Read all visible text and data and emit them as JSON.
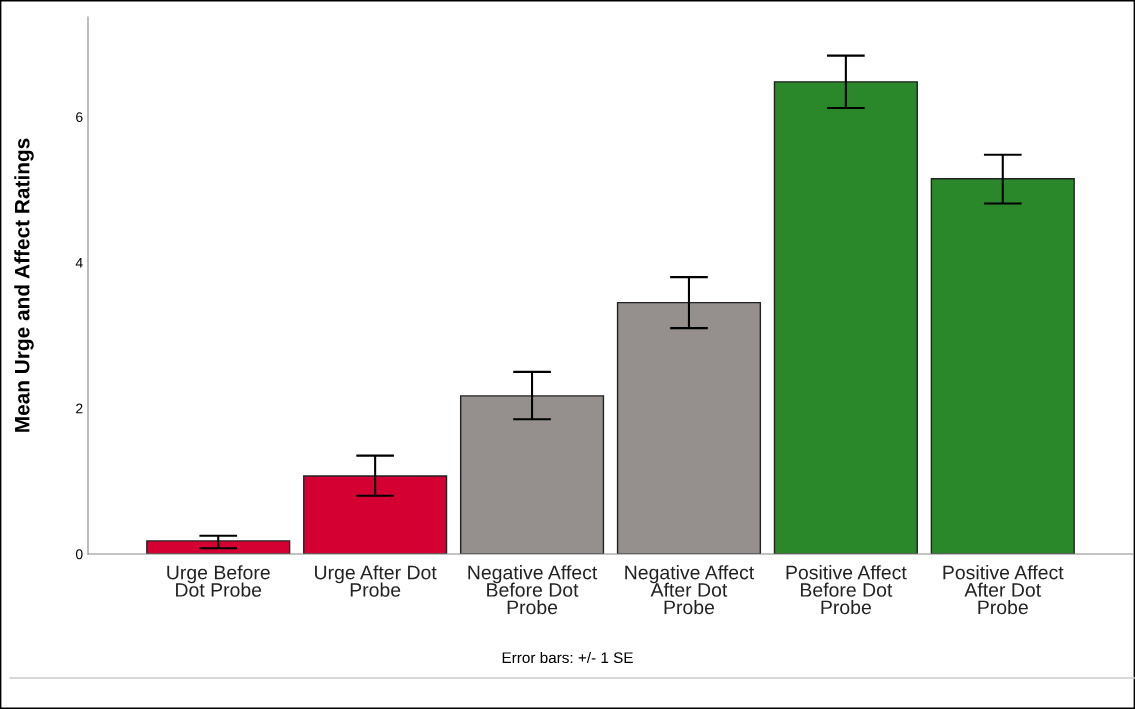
{
  "chart_data": {
    "type": "bar",
    "ylabel": "Mean Urge and Affect Ratings",
    "categories": [
      "Urge Before\nDot Probe",
      "Urge After Dot\nProbe",
      "Negative Affect\nBefore Dot\nProbe",
      "Negative Affect\nAfter Dot\nProbe",
      "Positive Affect\nBefore Dot\nProbe",
      "Positive Affect\nAfter Dot\nProbe"
    ],
    "values": [
      0.18,
      1.07,
      2.17,
      3.45,
      6.48,
      5.15
    ],
    "colors": [
      "#d50032",
      "#d50032",
      "#958f8e",
      "#958f8e",
      "#2a872a",
      "#2a872a"
    ],
    "errors": [
      [
        0.08,
        0.25
      ],
      [
        0.8,
        1.35
      ],
      [
        1.85,
        2.5
      ],
      [
        3.1,
        3.8
      ],
      [
        6.12,
        6.84
      ],
      [
        4.81,
        5.48
      ]
    ],
    "ylim": [
      0,
      7.37
    ],
    "yticks": [
      0,
      2,
      4,
      6
    ],
    "grid": false,
    "annotations": [
      "Error bars: +/- 1 SE"
    ]
  }
}
